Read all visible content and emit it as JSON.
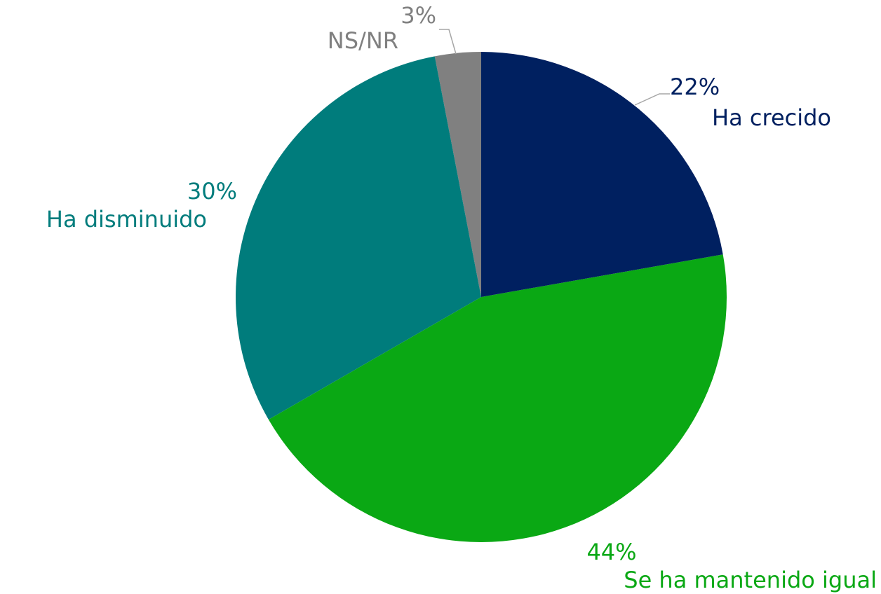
{
  "chart_data": {
    "type": "pie",
    "categories": [
      "Ha crecido",
      "Se ha mantenido igual",
      "Ha disminuido",
      "NS/NR"
    ],
    "values": [
      22,
      44,
      30,
      3
    ],
    "value_labels": [
      "22%",
      "44%",
      "30%",
      "3%"
    ],
    "colors": [
      "#002060",
      "#0aa814",
      "#007c7c",
      "#808080"
    ]
  }
}
